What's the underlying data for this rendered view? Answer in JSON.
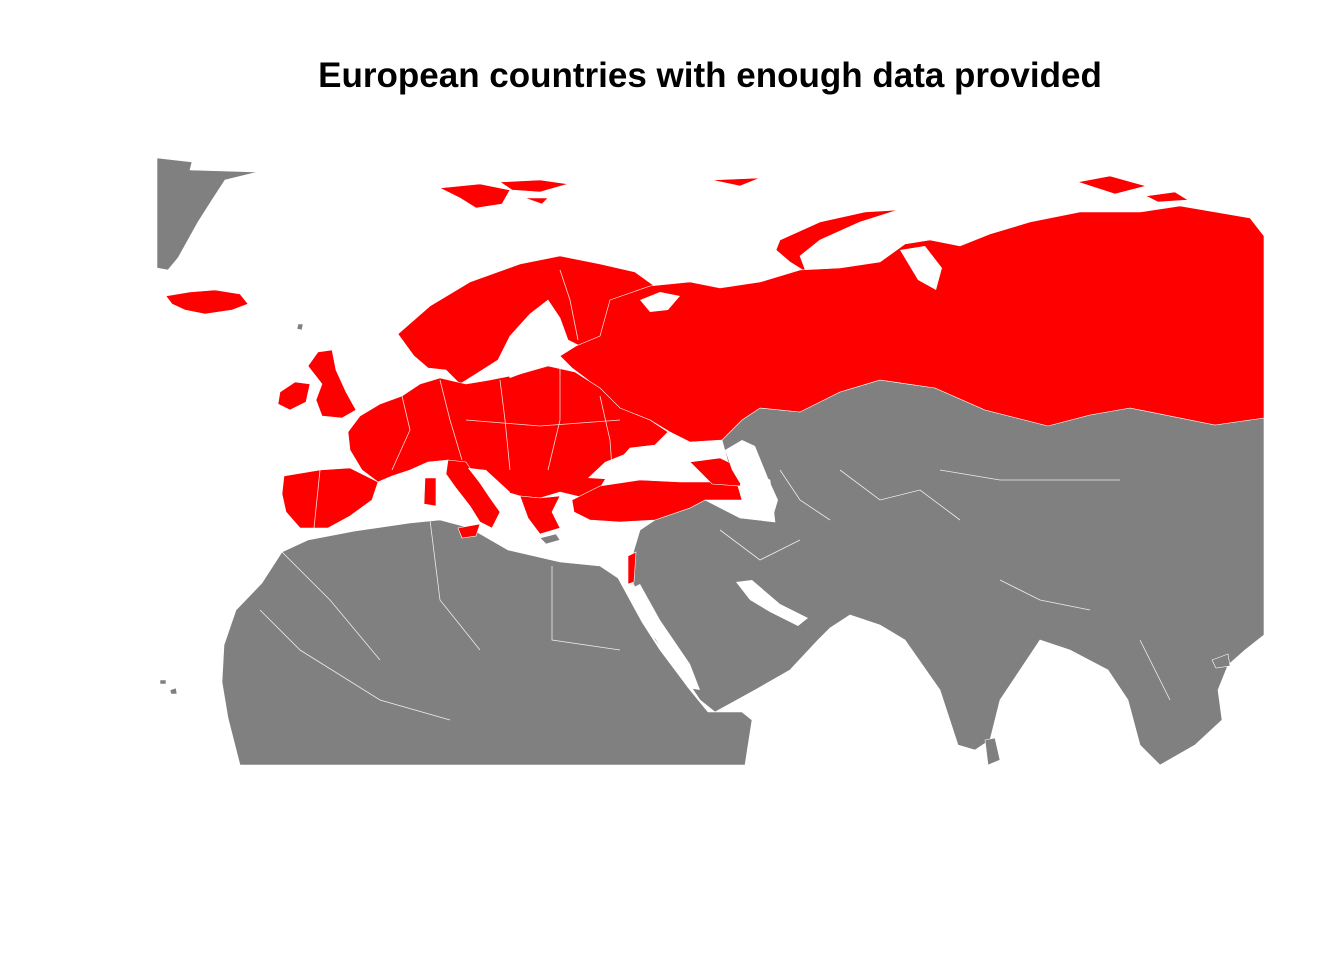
{
  "title": "European countries with enough data provided",
  "colors": {
    "highlighted": "#ff0000",
    "other": "#808080",
    "border": "#ffffff",
    "background": "#ffffff"
  }
}
